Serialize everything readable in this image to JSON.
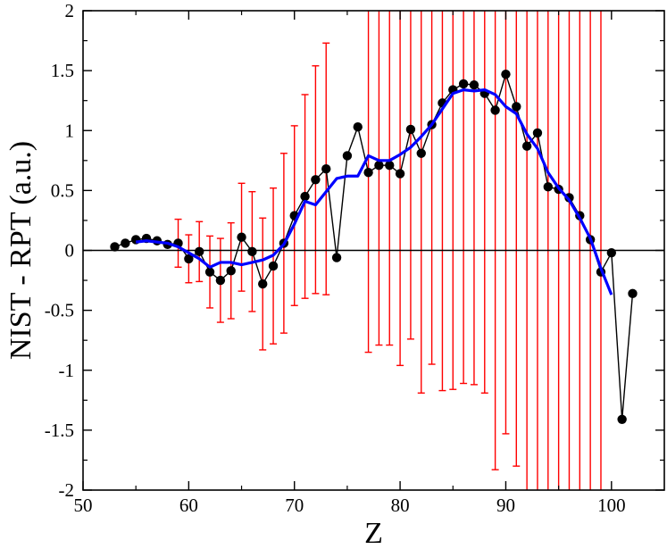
{
  "chart_data": {
    "type": "scatter",
    "title": "",
    "xlabel": "Z",
    "ylabel": "NIST - RPT (a.u.)",
    "xlim": [
      50,
      105
    ],
    "ylim": [
      -2,
      2
    ],
    "x_ticks": [
      50,
      60,
      70,
      80,
      90,
      100
    ],
    "y_ticks": [
      -2,
      -1.5,
      -1,
      -0.5,
      0,
      0.5,
      1,
      1.5,
      2
    ],
    "x_tick_labels": [
      "50",
      "60",
      "70",
      "80",
      "90",
      "100"
    ],
    "y_tick_labels": [
      "-2",
      "-1.5",
      "-1",
      "-0.5",
      "0",
      "0.5",
      "1",
      "1.5",
      "2"
    ],
    "zero_line": true,
    "grid": false,
    "colors": {
      "points": "#000000",
      "fit_line": "#0000ff",
      "error_bars": "#ff0000",
      "zero_line": "#000000"
    },
    "series": [
      {
        "style": "black line with filled circles",
        "x": [
          53,
          54,
          55,
          56,
          57,
          58,
          59,
          60,
          61,
          62,
          63,
          64,
          65,
          66,
          67,
          68,
          69,
          70,
          71,
          72,
          73,
          74,
          75,
          76,
          77,
          78,
          79,
          80,
          81,
          82,
          83,
          84,
          85,
          86,
          87,
          88,
          89,
          90,
          91,
          92,
          93,
          94,
          95,
          96,
          97,
          98,
          99,
          100,
          101,
          102
        ],
        "y": [
          0.03,
          0.06,
          0.09,
          0.1,
          0.08,
          0.05,
          0.06,
          -0.07,
          -0.01,
          -0.18,
          -0.25,
          -0.17,
          0.11,
          -0.01,
          -0.28,
          -0.13,
          0.06,
          0.29,
          0.45,
          0.59,
          0.68,
          -0.06,
          0.79,
          1.03,
          0.65,
          0.71,
          0.71,
          0.64,
          1.01,
          0.81,
          1.05,
          1.23,
          1.34,
          1.39,
          1.38,
          1.31,
          1.17,
          1.47,
          1.2,
          0.87,
          0.98,
          0.53,
          0.51,
          0.44,
          0.29,
          0.09,
          -0.18,
          -0.02,
          -1.41,
          -0.36
        ],
        "error": [
          null,
          null,
          null,
          null,
          null,
          null,
          0.2,
          0.2,
          0.25,
          0.3,
          0.35,
          0.4,
          0.45,
          0.5,
          0.55,
          0.65,
          0.75,
          0.75,
          0.85,
          0.95,
          1.05,
          null,
          null,
          null,
          1.5,
          1.5,
          1.5,
          1.6,
          1.75,
          2.0,
          2.0,
          2.4,
          2.5,
          2.5,
          2.5,
          2.5,
          3.0,
          3.0,
          3.0,
          3.0,
          3.0,
          3.0,
          3.0,
          3.0,
          3.0,
          3.0,
          3.0,
          null,
          null,
          null
        ]
      },
      {
        "style": "blue smooth line",
        "x": [
          55,
          56,
          57,
          58,
          59,
          60,
          61,
          62,
          63,
          64,
          65,
          66,
          67,
          68,
          69,
          70,
          71,
          72,
          73,
          74,
          75,
          76,
          77,
          78,
          79,
          80,
          81,
          82,
          83,
          84,
          85,
          86,
          87,
          88,
          89,
          90,
          91,
          92,
          93,
          94,
          95,
          96,
          97,
          98,
          99,
          100
        ],
        "y": [
          0.07,
          0.08,
          0.07,
          0.06,
          0.03,
          -0.02,
          -0.07,
          -0.14,
          -0.1,
          -0.1,
          -0.12,
          -0.1,
          -0.08,
          -0.04,
          0.05,
          0.22,
          0.41,
          0.38,
          0.49,
          0.6,
          0.62,
          0.62,
          0.79,
          0.75,
          0.75,
          0.8,
          0.86,
          0.95,
          1.05,
          1.18,
          1.31,
          1.34,
          1.33,
          1.34,
          1.3,
          1.2,
          1.14,
          0.97,
          0.85,
          0.65,
          0.52,
          0.42,
          0.27,
          0.1,
          -0.15,
          -0.37
        ]
      }
    ]
  }
}
